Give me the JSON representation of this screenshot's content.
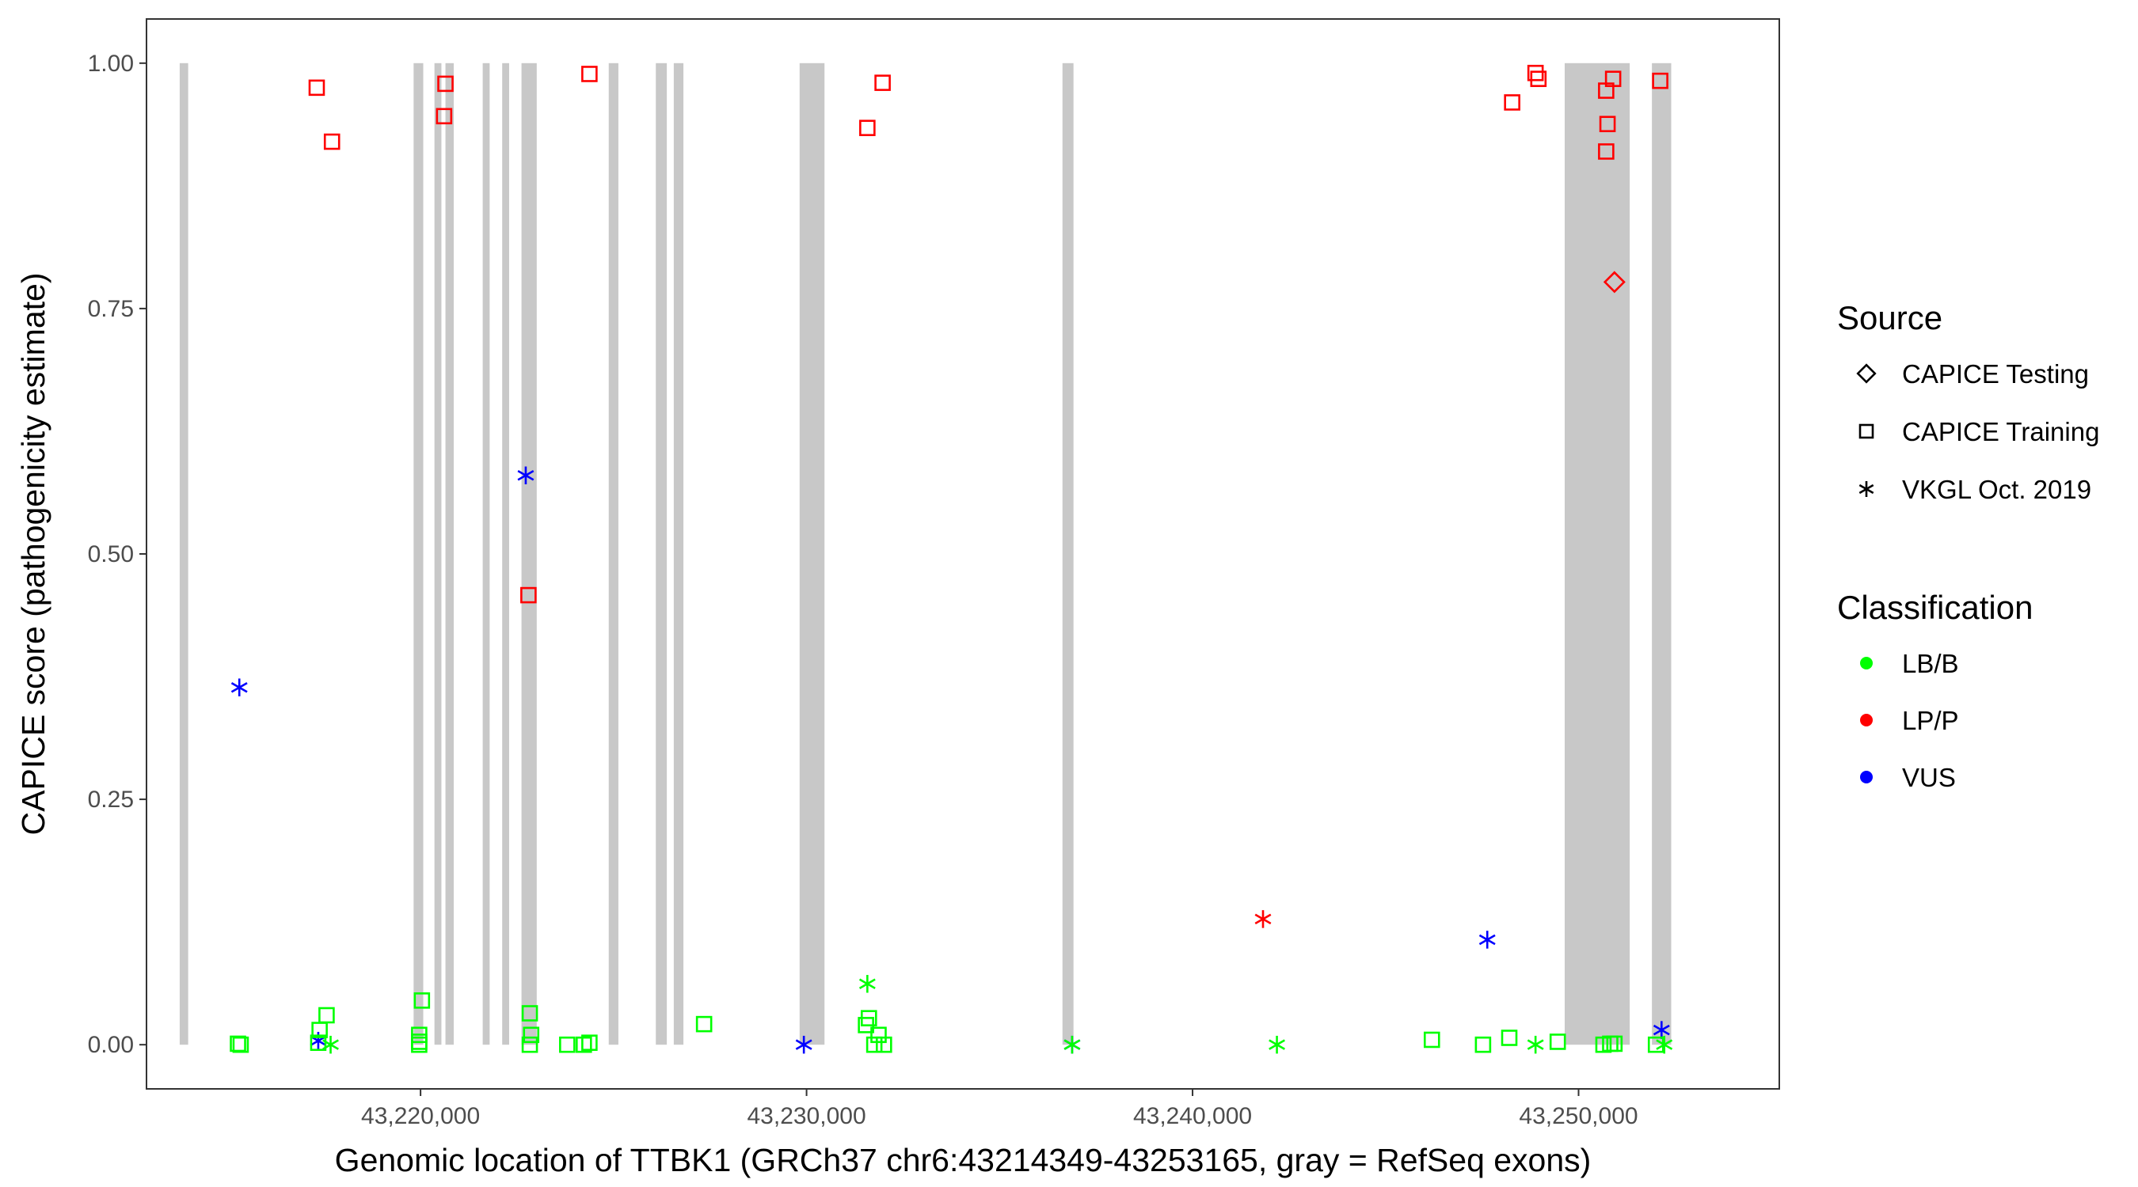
{
  "chart_data": {
    "type": "scatter",
    "title": "",
    "xlabel": "Genomic location of TTBK1 (GRCh37 chr6:43214349-43253165, gray = RefSeq exons)",
    "ylabel": "CAPICE score (pathogenicity estimate)",
    "xlim": [
      43212900,
      43255200
    ],
    "ylim": [
      -0.045,
      1.045
    ],
    "x_ticks": [
      43220000,
      43230000,
      43240000,
      43250000
    ],
    "x_tick_labels": [
      "43,220,000",
      "43,230,000",
      "43,240,000",
      "43,250,000"
    ],
    "y_ticks": [
      0,
      0.25,
      0.5,
      0.75,
      1.0
    ],
    "y_tick_labels": [
      "0.00",
      "0.25",
      "0.50",
      "0.75",
      "1.00"
    ],
    "grid": false,
    "exon_color": "#c8c8c8",
    "exons": [
      [
        43213760,
        43213980
      ],
      [
        43219820,
        43220070
      ],
      [
        43220360,
        43220540
      ],
      [
        43220645,
        43220860
      ],
      [
        43221610,
        43221790
      ],
      [
        43222115,
        43222295
      ],
      [
        43222615,
        43223010
      ],
      [
        43224875,
        43225125
      ],
      [
        43226095,
        43226380
      ],
      [
        43226560,
        43226810
      ],
      [
        43229820,
        43230465
      ],
      [
        43236630,
        43236915
      ],
      [
        43249640,
        43251325
      ],
      [
        43251900,
        43252400
      ]
    ],
    "legend": {
      "placement": "right",
      "source_title": "Source",
      "source_items": [
        {
          "label": "CAPICE Testing",
          "shape": "diamond"
        },
        {
          "label": "CAPICE Training",
          "shape": "square"
        },
        {
          "label": "VKGL Oct. 2019",
          "shape": "asterisk"
        }
      ],
      "class_title": "Classification",
      "class_items": [
        {
          "label": "LB/B",
          "color": "#00ff00"
        },
        {
          "label": "LP/P",
          "color": "#ff0000"
        },
        {
          "label": "VUS",
          "color": "#0000ff"
        }
      ]
    },
    "points": [
      {
        "x": 43217310,
        "y": 0.975,
        "source": "CAPICE Training",
        "class": "LP/P"
      },
      {
        "x": 43217705,
        "y": 0.92,
        "source": "CAPICE Training",
        "class": "LP/P"
      },
      {
        "x": 43220645,
        "y": 0.979,
        "source": "CAPICE Training",
        "class": "LP/P"
      },
      {
        "x": 43220610,
        "y": 0.946,
        "source": "CAPICE Training",
        "class": "LP/P"
      },
      {
        "x": 43222795,
        "y": 0.458,
        "source": "CAPICE Training",
        "class": "LP/P"
      },
      {
        "x": 43224375,
        "y": 0.989,
        "source": "CAPICE Training",
        "class": "LP/P"
      },
      {
        "x": 43231575,
        "y": 0.934,
        "source": "CAPICE Training",
        "class": "LP/P"
      },
      {
        "x": 43231970,
        "y": 0.98,
        "source": "CAPICE Training",
        "class": "LP/P"
      },
      {
        "x": 43248280,
        "y": 0.96,
        "source": "CAPICE Training",
        "class": "LP/P"
      },
      {
        "x": 43248885,
        "y": 0.99,
        "source": "CAPICE Training",
        "class": "LP/P"
      },
      {
        "x": 43248960,
        "y": 0.984,
        "source": "CAPICE Training",
        "class": "LP/P"
      },
      {
        "x": 43250715,
        "y": 0.972,
        "source": "CAPICE Training",
        "class": "LP/P"
      },
      {
        "x": 43250750,
        "y": 0.938,
        "source": "CAPICE Training",
        "class": "LP/P"
      },
      {
        "x": 43250715,
        "y": 0.91,
        "source": "CAPICE Training",
        "class": "LP/P"
      },
      {
        "x": 43250895,
        "y": 0.984,
        "source": "CAPICE Training",
        "class": "LP/P"
      },
      {
        "x": 43252115,
        "y": 0.982,
        "source": "CAPICE Training",
        "class": "LP/P"
      },
      {
        "x": 43250930,
        "y": 0.777,
        "source": "CAPICE Testing",
        "class": "LP/P"
      },
      {
        "x": 43241825,
        "y": 0.128,
        "source": "VKGL Oct. 2019",
        "class": "LP/P"
      },
      {
        "x": 43215305,
        "y": 0.364,
        "source": "VKGL Oct. 2019",
        "class": "VUS"
      },
      {
        "x": 43217350,
        "y": 0.004,
        "source": "VKGL Oct. 2019",
        "class": "VUS"
      },
      {
        "x": 43222725,
        "y": 0.58,
        "source": "VKGL Oct. 2019",
        "class": "VUS"
      },
      {
        "x": 43229930,
        "y": 0.0,
        "source": "VKGL Oct. 2019",
        "class": "VUS"
      },
      {
        "x": 43236880,
        "y": 0.0,
        "source": "VKGL Oct. 2019",
        "class": "VUS"
      },
      {
        "x": 43247635,
        "y": 0.107,
        "source": "VKGL Oct. 2019",
        "class": "VUS"
      },
      {
        "x": 43252150,
        "y": 0.015,
        "source": "VKGL Oct. 2019",
        "class": "VUS"
      },
      {
        "x": 43217670,
        "y": 0.0,
        "source": "VKGL Oct. 2019",
        "class": "LB/B"
      },
      {
        "x": 43231575,
        "y": 0.062,
        "source": "VKGL Oct. 2019",
        "class": "LB/B"
      },
      {
        "x": 43236880,
        "y": 0.0,
        "source": "VKGL Oct. 2019",
        "class": "LB/B"
      },
      {
        "x": 43242185,
        "y": 0.0,
        "source": "VKGL Oct. 2019",
        "class": "LB/B"
      },
      {
        "x": 43248885,
        "y": 0.0,
        "source": "VKGL Oct. 2019",
        "class": "LB/B"
      },
      {
        "x": 43252220,
        "y": 0.0,
        "source": "VKGL Oct. 2019",
        "class": "LB/B"
      },
      {
        "x": 43215270,
        "y": 0.001,
        "source": "CAPICE Training",
        "class": "LB/B"
      },
      {
        "x": 43215340,
        "y": 0.0,
        "source": "CAPICE Training",
        "class": "LB/B"
      },
      {
        "x": 43217385,
        "y": 0.015,
        "source": "CAPICE Training",
        "class": "LB/B"
      },
      {
        "x": 43217565,
        "y": 0.03,
        "source": "CAPICE Training",
        "class": "LB/B"
      },
      {
        "x": 43217350,
        "y": 0.002,
        "source": "CAPICE Training",
        "class": "LB/B"
      },
      {
        "x": 43220035,
        "y": 0.045,
        "source": "CAPICE Training",
        "class": "LB/B"
      },
      {
        "x": 43219965,
        "y": 0.01,
        "source": "CAPICE Training",
        "class": "LB/B"
      },
      {
        "x": 43219965,
        "y": 0.003,
        "source": "CAPICE Training",
        "class": "LB/B"
      },
      {
        "x": 43219965,
        "y": 0.0,
        "source": "CAPICE Training",
        "class": "LB/B"
      },
      {
        "x": 43222830,
        "y": 0.032,
        "source": "CAPICE Training",
        "class": "LB/B"
      },
      {
        "x": 43222865,
        "y": 0.01,
        "source": "CAPICE Training",
        "class": "LB/B"
      },
      {
        "x": 43222830,
        "y": 0.0,
        "source": "CAPICE Training",
        "class": "LB/B"
      },
      {
        "x": 43223800,
        "y": 0.0,
        "source": "CAPICE Training",
        "class": "LB/B"
      },
      {
        "x": 43224230,
        "y": 0.0,
        "source": "CAPICE Training",
        "class": "LB/B"
      },
      {
        "x": 43224375,
        "y": 0.002,
        "source": "CAPICE Training",
        "class": "LB/B"
      },
      {
        "x": 43227345,
        "y": 0.021,
        "source": "CAPICE Training",
        "class": "LB/B"
      },
      {
        "x": 43231615,
        "y": 0.027,
        "source": "CAPICE Training",
        "class": "LB/B"
      },
      {
        "x": 43231540,
        "y": 0.02,
        "source": "CAPICE Training",
        "class": "LB/B"
      },
      {
        "x": 43231865,
        "y": 0.01,
        "source": "CAPICE Training",
        "class": "LB/B"
      },
      {
        "x": 43231755,
        "y": 0.0,
        "source": "CAPICE Training",
        "class": "LB/B"
      },
      {
        "x": 43232005,
        "y": 0.0,
        "source": "CAPICE Training",
        "class": "LB/B"
      },
      {
        "x": 43246200,
        "y": 0.005,
        "source": "CAPICE Training",
        "class": "LB/B"
      },
      {
        "x": 43247525,
        "y": 0.0,
        "source": "CAPICE Training",
        "class": "LB/B"
      },
      {
        "x": 43248205,
        "y": 0.007,
        "source": "CAPICE Training",
        "class": "LB/B"
      },
      {
        "x": 43249460,
        "y": 0.003,
        "source": "CAPICE Training",
        "class": "LB/B"
      },
      {
        "x": 43250645,
        "y": 0.0,
        "source": "CAPICE Training",
        "class": "LB/B"
      },
      {
        "x": 43250820,
        "y": 0.001,
        "source": "CAPICE Training",
        "class": "LB/B"
      },
      {
        "x": 43250930,
        "y": 0.001,
        "source": "CAPICE Training",
        "class": "LB/B"
      },
      {
        "x": 43252005,
        "y": 0.0,
        "source": "CAPICE Training",
        "class": "LB/B"
      }
    ]
  }
}
